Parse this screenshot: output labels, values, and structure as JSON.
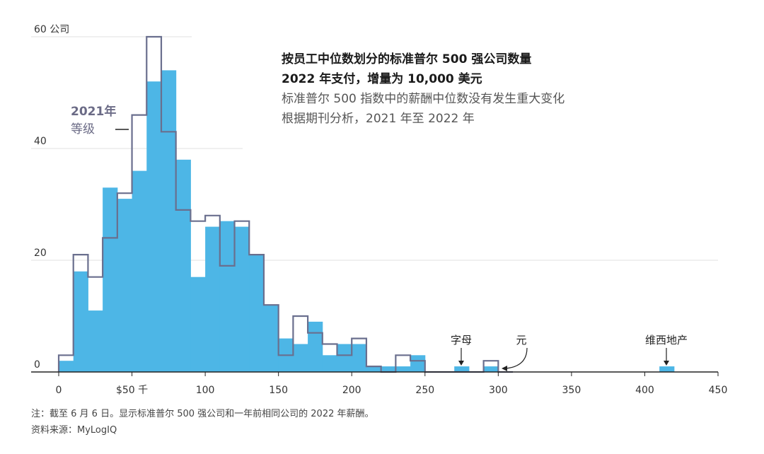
{
  "title": {
    "line1": "按员工中位数划分的标准普尔 500 强公司数量",
    "line2": "2022 年支付，增量为 10,000 美元",
    "line3": "标准普尔 500 指数中的薪酬中位数没有发生重大变化",
    "line4": "根据期刊分析，2021 年至 2022 年"
  },
  "legend": {
    "line1": "2021年",
    "line2": "等级"
  },
  "annotations": {
    "alphabet": "字母",
    "yuan": "元",
    "realestate": "维西地产"
  },
  "footer": {
    "note": "注：截至 6 月 6 日。显示标准普尔 500 强公司和一年前相同公司的 2022 年薪酬。",
    "source": "资料来源：MyLogIQ"
  },
  "colors": {
    "fill_2022": "#4db6e6",
    "outline_2021": "#6a6f8e",
    "grid": "#e2e2e2",
    "axis": "#222222"
  },
  "chart_data": {
    "type": "bar",
    "title": "按员工中位数划分的标准普尔 500 强公司数量",
    "xlabel": "",
    "ylabel": "60 公司",
    "xlim": [
      0,
      450
    ],
    "ylim": [
      0,
      60
    ],
    "bin_width": 10,
    "x_ticks": [
      0,
      50,
      100,
      150,
      200,
      250,
      300,
      350,
      400,
      450
    ],
    "x_tick_labels": [
      "0",
      "$50 千",
      "100",
      "150",
      "200",
      "250",
      "300",
      "350",
      "400",
      "450"
    ],
    "y_ticks": [
      0,
      20,
      40,
      60
    ],
    "y_tick_labels": [
      "0",
      "20",
      "40",
      "60 公司"
    ],
    "series": [
      {
        "name": "2022",
        "style": "filled",
        "bins": [
          {
            "x": 0,
            "value": 2
          },
          {
            "x": 10,
            "value": 18
          },
          {
            "x": 20,
            "value": 11
          },
          {
            "x": 30,
            "value": 33
          },
          {
            "x": 40,
            "value": 31
          },
          {
            "x": 50,
            "value": 36
          },
          {
            "x": 60,
            "value": 52
          },
          {
            "x": 70,
            "value": 54
          },
          {
            "x": 80,
            "value": 38
          },
          {
            "x": 90,
            "value": 17
          },
          {
            "x": 100,
            "value": 26
          },
          {
            "x": 110,
            "value": 27
          },
          {
            "x": 120,
            "value": 26
          },
          {
            "x": 130,
            "value": 21
          },
          {
            "x": 140,
            "value": 12
          },
          {
            "x": 150,
            "value": 6
          },
          {
            "x": 160,
            "value": 5
          },
          {
            "x": 170,
            "value": 9
          },
          {
            "x": 180,
            "value": 3
          },
          {
            "x": 190,
            "value": 5
          },
          {
            "x": 200,
            "value": 5
          },
          {
            "x": 210,
            "value": 1
          },
          {
            "x": 220,
            "value": 1
          },
          {
            "x": 230,
            "value": 1
          },
          {
            "x": 240,
            "value": 3
          },
          {
            "x": 270,
            "value": 1
          },
          {
            "x": 290,
            "value": 1
          },
          {
            "x": 410,
            "value": 1
          }
        ]
      },
      {
        "name": "2021年 等级",
        "style": "outline",
        "bins": [
          {
            "x": 0,
            "value": 3
          },
          {
            "x": 10,
            "value": 21
          },
          {
            "x": 20,
            "value": 17
          },
          {
            "x": 30,
            "value": 24
          },
          {
            "x": 40,
            "value": 32
          },
          {
            "x": 50,
            "value": 46
          },
          {
            "x": 60,
            "value": 60
          },
          {
            "x": 70,
            "value": 43
          },
          {
            "x": 80,
            "value": 29
          },
          {
            "x": 90,
            "value": 27
          },
          {
            "x": 100,
            "value": 28
          },
          {
            "x": 110,
            "value": 19
          },
          {
            "x": 120,
            "value": 27
          },
          {
            "x": 130,
            "value": 21
          },
          {
            "x": 140,
            "value": 12
          },
          {
            "x": 150,
            "value": 3
          },
          {
            "x": 160,
            "value": 10
          },
          {
            "x": 170,
            "value": 7
          },
          {
            "x": 180,
            "value": 5
          },
          {
            "x": 190,
            "value": 3
          },
          {
            "x": 200,
            "value": 6
          },
          {
            "x": 210,
            "value": 1
          },
          {
            "x": 220,
            "value": 0
          },
          {
            "x": 230,
            "value": 3
          },
          {
            "x": 240,
            "value": 2
          },
          {
            "x": 250,
            "value": 0
          },
          {
            "x": 260,
            "value": 0
          },
          {
            "x": 270,
            "value": 0
          },
          {
            "x": 280,
            "value": 0
          },
          {
            "x": 290,
            "value": 2
          },
          {
            "x": 300,
            "value": 0
          }
        ]
      }
    ],
    "annotations": [
      {
        "label": "字母",
        "x": 275
      },
      {
        "label": "元",
        "x": 295
      },
      {
        "label": "维西地产",
        "x": 415
      }
    ]
  }
}
